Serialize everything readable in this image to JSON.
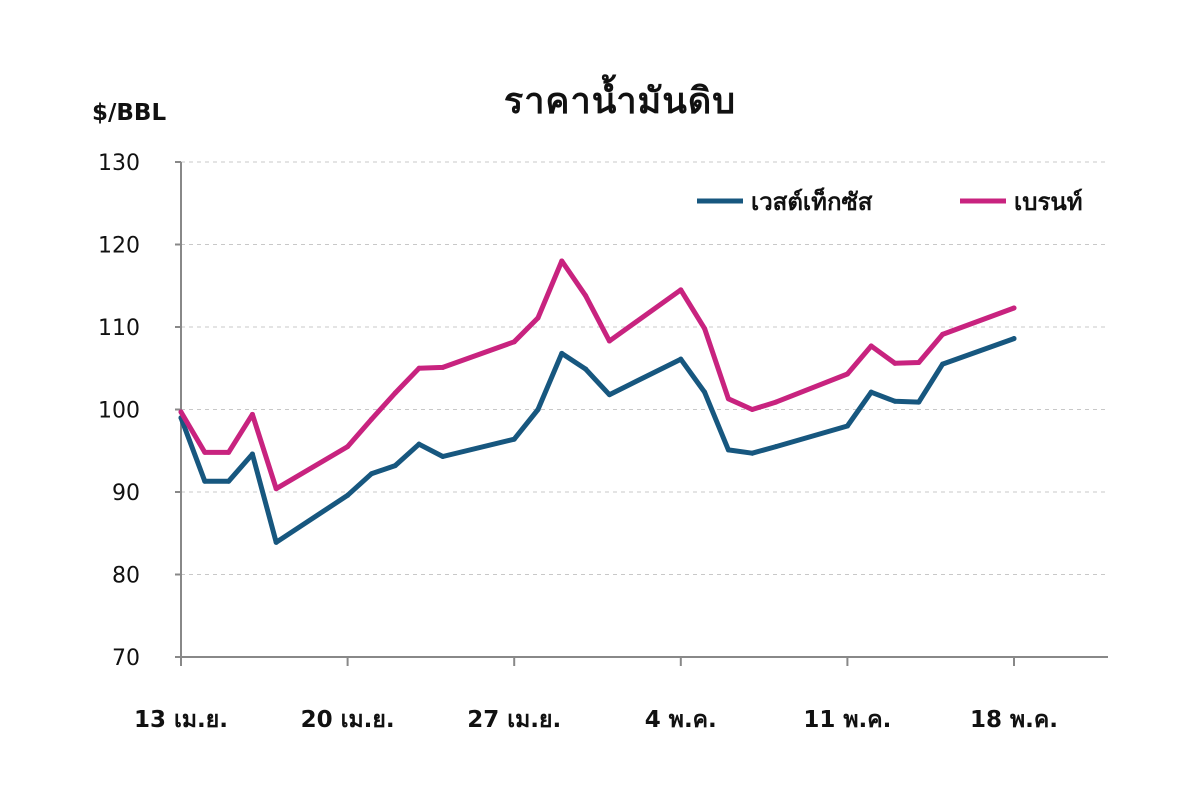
{
  "chart_data": {
    "type": "line",
    "title": "ราคาน้ำมันดิบ",
    "ylabel": "$/BBL",
    "xlabel": "",
    "ylim": [
      70,
      130
    ],
    "yticks": [
      70,
      80,
      90,
      100,
      110,
      120,
      130
    ],
    "grid": true,
    "legend_position": "top-right",
    "x_tick_labels": [
      {
        "day": 0,
        "label": "13 เม.ย."
      },
      {
        "day": 7,
        "label": "20 เม.ย."
      },
      {
        "day": 14,
        "label": "27 เม.ย."
      },
      {
        "day": 21,
        "label": "4 พ.ค."
      },
      {
        "day": 28,
        "label": "11 พ.ค."
      },
      {
        "day": 35,
        "label": "18 พ.ค."
      }
    ],
    "x": [
      0,
      1,
      2,
      3,
      4,
      7,
      8,
      9,
      10,
      11,
      14,
      15,
      16,
      17,
      18,
      21,
      22,
      23,
      24,
      25,
      28,
      29,
      30,
      31,
      32,
      35
    ],
    "series": [
      {
        "name": "เวสต์เท็กซัส",
        "color": "#17577f",
        "values": [
          99.0,
          91.3,
          91.3,
          94.6,
          83.9,
          89.6,
          92.2,
          93.2,
          95.8,
          94.3,
          96.4,
          100.0,
          106.8,
          104.9,
          101.8,
          106.1,
          102.1,
          95.1,
          94.7,
          95.5,
          98.0,
          102.1,
          101.0,
          100.9,
          105.5,
          108.6
        ]
      },
      {
        "name": "เบรนท์",
        "color": "#c8237f",
        "values": [
          99.7,
          94.8,
          94.8,
          99.4,
          90.4,
          95.5,
          98.8,
          102.0,
          105.0,
          105.1,
          108.2,
          111.1,
          118.0,
          113.8,
          108.3,
          114.5,
          109.8,
          101.3,
          100.0,
          100.9,
          104.3,
          107.7,
          105.6,
          105.7,
          109.1,
          112.3
        ]
      }
    ]
  }
}
